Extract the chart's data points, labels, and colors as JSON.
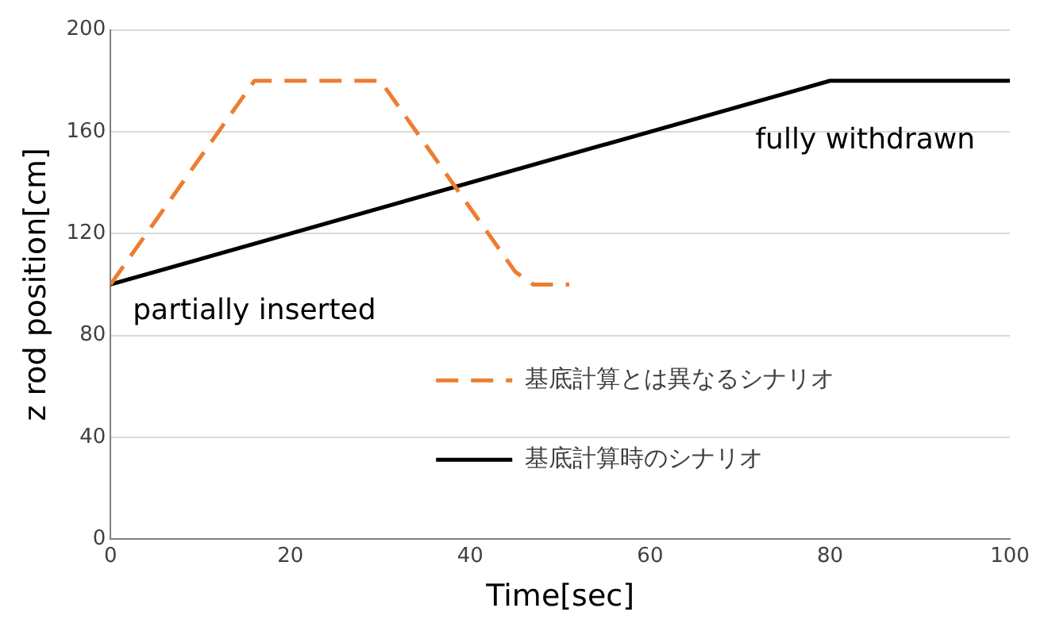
{
  "chart_data": {
    "type": "line",
    "xlabel": "Time[sec]",
    "ylabel": "z rod position[cm]",
    "xlim": [
      0,
      100
    ],
    "xticks": [
      0,
      20,
      40,
      60,
      80,
      100
    ],
    "ylim": [
      0,
      200
    ],
    "yticks": [
      0,
      40,
      80,
      120,
      160,
      200
    ],
    "grid": "y",
    "legend": "bottom right",
    "marker": "none",
    "series": [
      {
        "name": "基底計算とは異なるシナリオ",
        "color": "#ed7d31",
        "line_style": "dashed",
        "x": [
          0,
          16,
          30,
          45,
          47,
          51
        ],
        "values": [
          100,
          180,
          180,
          105,
          100,
          100
        ]
      },
      {
        "name": "基底計算時のシナリオ",
        "color": "#000000",
        "line_style": "solid",
        "x": [
          0,
          80,
          100
        ],
        "values": [
          100,
          180,
          180
        ]
      }
    ],
    "annotations": [
      {
        "text": "partially inserted",
        "x": 0,
        "y": 100
      },
      "fully withdrawn"
    ]
  }
}
